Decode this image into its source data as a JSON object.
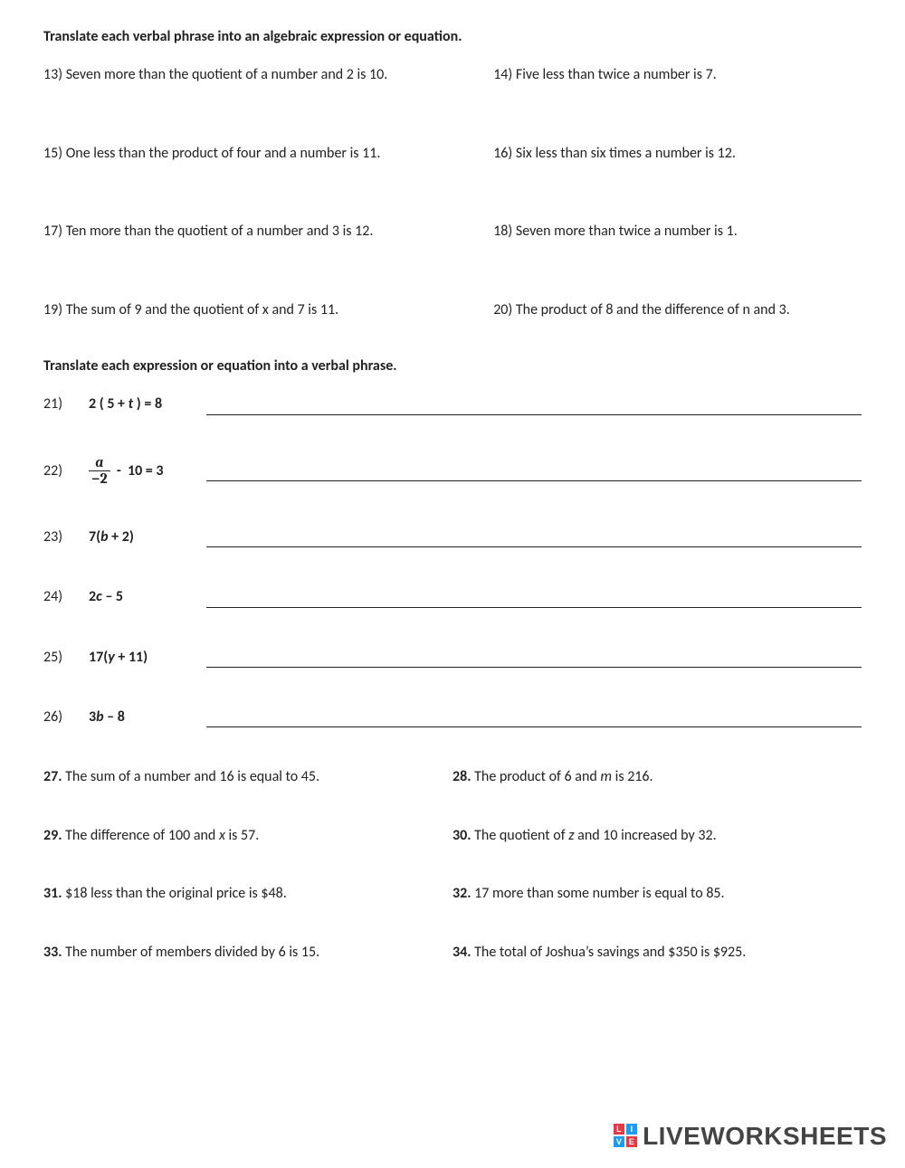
{
  "section1": {
    "header": "Translate each verbal phrase into an algebraic expression or equation.",
    "rows": [
      {
        "l": "13)  Seven more than the quotient of a number and 2 is 10.",
        "r": "14) Five less than twice a number is 7."
      },
      {
        "l": "15) One less than the product of four and a number is 11.",
        "r": "16)  Six less than six times a number is 12."
      },
      {
        "l": "17) Ten more than the quotient of a number and 3 is 12.",
        "r": "18)  Seven more than twice a number is 1."
      },
      {
        "l": "19) The sum of 9 and the quotient of x and 7 is 11.",
        "r": "20) The product of 8 and the difference of n and 3."
      }
    ]
  },
  "section2": {
    "header": "Translate each expression or equation into a verbal phrase.",
    "items": [
      {
        "num": "21)",
        "expr_html": "2 ( 5 + <span class='italic'>t</span> ) = 8"
      },
      {
        "num": "22)",
        "expr_html": "<span class='frac'><span class='num'>a</span><span class='den'>−2</span></span>&nbsp; -&nbsp; 10 = 3"
      },
      {
        "num": "23)",
        "expr_html": "7(<span class='italic'>b</span> + 2)"
      },
      {
        "num": "24)",
        "expr_html": "2<span class='italic'>c</span> – 5"
      },
      {
        "num": "25)",
        "expr_html": "17(<span class='italic'>y</span>  +  11)"
      },
      {
        "num": "26)",
        "expr_html": "3<span class='italic'>b</span>  –  8"
      }
    ]
  },
  "section3": {
    "rows": [
      {
        "ln": "27.",
        "lt": " The sum of a number and 16 is equal to 45.",
        "rn": "28.",
        "rt_html": " The product of 6 and <span class='italic'>m</span> is 216."
      },
      {
        "ln": "29.",
        "lt_html": " The difference of 100 and <span class='italic'>x</span> is 57.",
        "rn": "30.",
        "rt_html": " The quotient of <span class='italic'>z</span> and 10 increased by 32."
      },
      {
        "ln": "31.",
        "lt": " $18 less than the original price is $48.",
        "rn": "32.",
        "rt": " 17 more than some number is equal to 85."
      },
      {
        "ln": "33.",
        "lt": " The number of members divided by 6 is 15.",
        "rn": "34.",
        "rt": " The total of Joshua’s savings and $350 is $925."
      }
    ]
  },
  "watermark": {
    "text": "LIVEWORKSHEETS",
    "logo_colors": [
      "#e63946",
      "#1d9bf0",
      "#1d9bf0",
      "#e63946"
    ],
    "logo_letters": [
      "L",
      "I",
      "V",
      "E"
    ]
  }
}
